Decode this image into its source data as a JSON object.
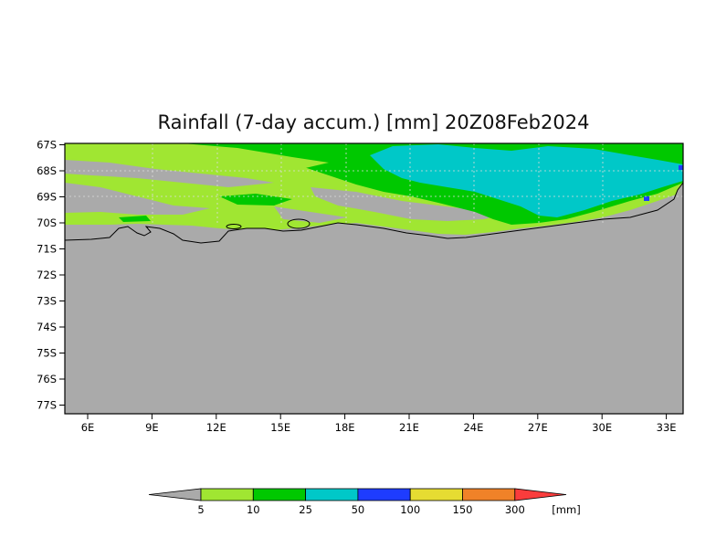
{
  "title": "Rainfall (7-day accum.) [mm] 20Z08Feb2024",
  "map": {
    "lat_ticks": [
      "67S",
      "68S",
      "69S",
      "70S",
      "71S",
      "72S",
      "73S",
      "74S",
      "75S",
      "76S",
      "77S"
    ],
    "lon_ticks": [
      "6E",
      "9E",
      "12E",
      "15E",
      "18E",
      "21E",
      "24E",
      "27E",
      "30E",
      "33E"
    ],
    "background_color": "#aaaaaa",
    "coastline_color": "#000000"
  },
  "colorbar": {
    "thresholds": [
      "5",
      "10",
      "25",
      "50",
      "100",
      "150",
      "300"
    ],
    "unit": "[mm]",
    "colors": [
      "#aaaaaa",
      "#a0e632",
      "#00c800",
      "#00c8c8",
      "#1e3cff",
      "#e6dc32",
      "#f08228",
      "#fa3c3c"
    ]
  }
}
